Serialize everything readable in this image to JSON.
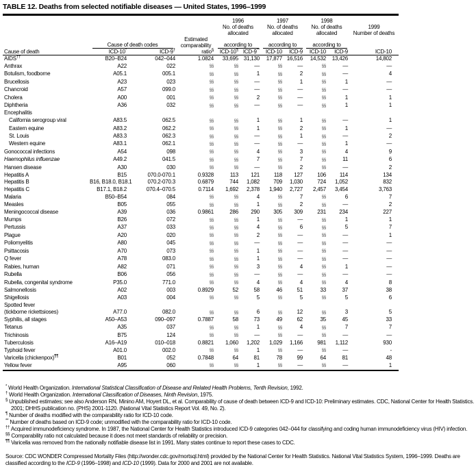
{
  "title": "TABLE 12. Deaths from selected notifiable diseases — United States, 1996–1999",
  "header": {
    "cause": "Cause of death",
    "codes": "Cause of death codes",
    "icd10": "ICD-10",
    "icd10_mark": "*",
    "icd9": "ICD-9",
    "icd9_mark": "†",
    "ratio": "Estimated comparability",
    "ratio2": "ratio",
    "ratio_mark": "§",
    "y1996": "1996",
    "y1997": "1997",
    "y1998": "1998",
    "y1999": "1999",
    "alloc": "No. of deaths allocated",
    "according": "according to",
    "num": "Number of deaths",
    "c96a": "ICD-10",
    "c96a_mark": "¶",
    "c96b": "ICD-9",
    "c96b_mark": "**",
    "cx10": "ICD-10",
    "cx9": "ICD-9"
  },
  "rows": [
    [
      "AIDS",
      "B20–B24",
      "042–044",
      "1.0824",
      "33,695",
      "31,130",
      "17,877",
      "16,516",
      "14,532",
      "13,426",
      "14,802",
      "††"
    ],
    [
      "Anthrax",
      "A22",
      "022",
      "§§",
      "§§",
      "—",
      "§§",
      "—",
      "§§",
      "—",
      "—"
    ],
    [
      "Botulism, foodborne",
      "A05.1",
      "005.1",
      "§§",
      "§§",
      "1",
      "§§",
      "2",
      "§§",
      "—",
      "4"
    ],
    [
      "Brucellosis",
      "A23",
      "023",
      "§§",
      "§§",
      "—",
      "§§",
      "1",
      "§§",
      "1",
      "—"
    ],
    [
      "Chancroid",
      "A57",
      "099.0",
      "§§",
      "§§",
      "—",
      "§§",
      "—",
      "§§",
      "—",
      "—"
    ],
    [
      "Cholera",
      "A00",
      "001",
      "§§",
      "§§",
      "2",
      "§§",
      "—",
      "§§",
      "1",
      "1"
    ],
    [
      "Diphtheria",
      "A36",
      "032",
      "§§",
      "§§",
      "—",
      "§§",
      "—",
      "§§",
      "1",
      "1"
    ],
    [
      "Encephalitis"
    ],
    [
      "California serogroup viral",
      "A83.5",
      "062.5",
      "§§",
      "§§",
      "1",
      "§§",
      "1",
      "§§",
      "—",
      "1",
      "",
      "ind"
    ],
    [
      "Eastern equine",
      "A83.2",
      "062.2",
      "§§",
      "§§",
      "1",
      "§§",
      "2",
      "§§",
      "1",
      "—",
      "",
      "ind"
    ],
    [
      "St. Louis",
      "A83.3",
      "062.3",
      "§§",
      "§§",
      "—",
      "§§",
      "1",
      "§§",
      "—",
      "2",
      "",
      "ind"
    ],
    [
      "Western equine",
      "A83.1",
      "062.1",
      "§§",
      "§§",
      "—",
      "§§",
      "—",
      "§§",
      "1",
      "—",
      "",
      "ind"
    ],
    [
      "Gonococcal infections",
      "A54",
      "098",
      "§§",
      "§§",
      "4",
      "§§",
      "3",
      "§§",
      "4",
      "9"
    ],
    [
      "Haemophilus influenzae",
      "A49.2",
      "041.5",
      "§§",
      "§§",
      "7",
      "§§",
      "7",
      "§§",
      "11",
      "6",
      "",
      "it"
    ],
    [
      "Hansen disease",
      "A30",
      "030",
      "§§",
      "§§",
      "—",
      "§§",
      "2",
      "§§",
      "—",
      "2"
    ],
    [
      "Hepatitis A",
      "B15",
      "070.0-070.1",
      "0.9328",
      "113",
      "121",
      "118",
      "127",
      "106",
      "114",
      "134"
    ],
    [
      "Hepatitis B",
      "B16, B18.0, B18.1",
      "070.2-070.3",
      "0.6879",
      "744",
      "1,082",
      "709",
      "1,030",
      "724",
      "1,052",
      "832"
    ],
    [
      "Hepatitis C",
      "B17.1, B18.2",
      "070.4–070.5",
      "0.7114",
      "1,692",
      "2,378",
      "1,940",
      "2,727",
      "2,457",
      "3,454",
      "3,763"
    ],
    [
      "Malaria",
      "B50–B54",
      "084",
      "§§",
      "§§",
      "4",
      "§§",
      "7",
      "§§",
      "6",
      "7"
    ],
    [
      "Measles",
      "B05",
      "055",
      "§§",
      "§§",
      "1",
      "§§",
      "2",
      "§§",
      "—",
      "2"
    ],
    [
      "Meningococcal disease",
      "A39",
      "036",
      "0.9861",
      "286",
      "290",
      "305",
      "309",
      "231",
      "234",
      "227"
    ],
    [
      "Mumps",
      "B26",
      "072",
      "§§",
      "§§",
      "1",
      "§§",
      "—",
      "§§",
      "1",
      "1"
    ],
    [
      "Pertussis",
      "A37",
      "033",
      "§§",
      "§§",
      "4",
      "§§",
      "6",
      "§§",
      "5",
      "7"
    ],
    [
      "Plague",
      "A20",
      "020",
      "§§",
      "§§",
      "2",
      "§§",
      "—",
      "§§",
      "—",
      "1"
    ],
    [
      "Poliomyelitis",
      "A80",
      "045",
      "§§",
      "§§",
      "—",
      "§§",
      "—",
      "§§",
      "—",
      "—"
    ],
    [
      "Psittacosis",
      "A70",
      "073",
      "§§",
      "§§",
      "1",
      "§§",
      "—",
      "§§",
      "—",
      "—"
    ],
    [
      "Q fever",
      "A78",
      "083.0",
      "§§",
      "§§",
      "1",
      "§§",
      "—",
      "§§",
      "—",
      "—"
    ],
    [
      "Rabies, human",
      "A82",
      "071",
      "§§",
      "§§",
      "3",
      "§§",
      "4",
      "§§",
      "1",
      "—"
    ],
    [
      "Rubella",
      "B06",
      "056",
      "§§",
      "§§",
      "—",
      "§§",
      "—",
      "§§",
      "—",
      "—"
    ],
    [
      "Rubella, congenital syndrome",
      "P35.0",
      "771.0",
      "§§",
      "§§",
      "4",
      "§§",
      "4",
      "§§",
      "4",
      "8"
    ],
    [
      "Salmonellosis",
      "A02",
      "003",
      "0.8929",
      "52",
      "58",
      "46",
      "51",
      "33",
      "37",
      "38"
    ],
    [
      "Shigellosis",
      "A03",
      "004",
      "§§",
      "§§",
      "5",
      "§§",
      "5",
      "§§",
      "5",
      "6"
    ],
    [
      "Spotted fever"
    ],
    [
      "(tickborne rickettsioses)",
      "A77.0",
      "082.0",
      "§§",
      "§§",
      "6",
      "§§",
      "12",
      "§§",
      "3",
      "5"
    ],
    [
      "Syphilis, all stages",
      "A50–A53",
      "090–097",
      "0.7887",
      "58",
      "73",
      "49",
      "62",
      "35",
      "45",
      "33"
    ],
    [
      "Tetanus",
      "A35",
      "037",
      "§§",
      "§§",
      "1",
      "§§",
      "4",
      "§§",
      "7",
      "7"
    ],
    [
      "Trichinosis",
      "B75",
      "124",
      "§§",
      "§§",
      "—",
      "§§",
      "—",
      "§§",
      "—",
      "—"
    ],
    [
      "Tuberculosis",
      "A16–A19",
      "010–018",
      "0.8821",
      "1,060",
      "1,202",
      "1,029",
      "1,166",
      "981",
      "1,112",
      "930"
    ],
    [
      "Typhoid fever",
      "A01.0",
      "002.0",
      "§§",
      "§§",
      "1",
      "§§",
      "—",
      "§§",
      "—",
      "-"
    ],
    [
      "Varicella (chickenpox)",
      "B01",
      "052",
      "0.7848",
      "64",
      "81",
      "78",
      "99",
      "64",
      "81",
      "48",
      "¶¶"
    ],
    [
      "Yellow fever",
      "A95",
      "060",
      "§§",
      "§§",
      "1",
      "§§",
      "—",
      "§§",
      "—",
      "1"
    ]
  ],
  "footnotes": [
    {
      "mark": "*",
      "pre": "World Health Organization. ",
      "it": "International Statistical Classification of Disease and Related Health Problems, Tenth Revision",
      "post": ", 1992."
    },
    {
      "mark": "†",
      "pre": "World Health Organization. ",
      "it": "International Classification of Diseases, Ninth Revision",
      "post": ", 1975."
    },
    {
      "mark": "§",
      "pre": "Unpublished estimates; see also Anderson RN, Minino AM, Hoyert DL, et al. Comparability of cause of death between ICD-9 and ICD-10: Preliminary estimates. CDC, National Center for Health Statistics. 2001; DHHS publication no. (PHS) 2001-1120. (National Vital Statistics Report Vol. 49, No. 2).",
      "it": "",
      "post": ""
    },
    {
      "mark": "¶",
      "pre": "Number of deaths modified with the comparability ratio for ICD-10 code.",
      "it": "",
      "post": ""
    },
    {
      "mark": "**",
      "pre": "Number of deaths based on ICD-9 code; unmodified with the comparability ratio for ICD-10 code.",
      "it": "",
      "post": ""
    },
    {
      "mark": "††",
      "pre": "Acquired immunodeficiency syndrome. In 1987, the National Center for Health Statistics introduced ICD-9 categories 042–044 for classifying and coding human immunodeficiency virus (HIV) infection.",
      "it": "",
      "post": ""
    },
    {
      "mark": "§§",
      "pre": "Comparability ratio not calculated because it does not meet standards of reliability or precision.",
      "it": "",
      "post": ""
    },
    {
      "mark": "¶¶",
      "pre": "Varicella was removed from the nationally notifiable disease list in 1991. Many states continue to report these cases to CDC.",
      "it": "",
      "post": ""
    }
  ],
  "source": {
    "a": "Source: CDC WONDER Compressed Mortality Files (http://wonder.cdc.gov/mortsql.html) provided by the National Center for Health Statistics. National Vital Statistics System, 1996–1999. Deaths are classified according to the ",
    "b": "ICD-9",
    "c": " (1996–1998) and ",
    "d": "ICD-10",
    "e": " (1999). Data for 2000 and 2001 are not available."
  }
}
